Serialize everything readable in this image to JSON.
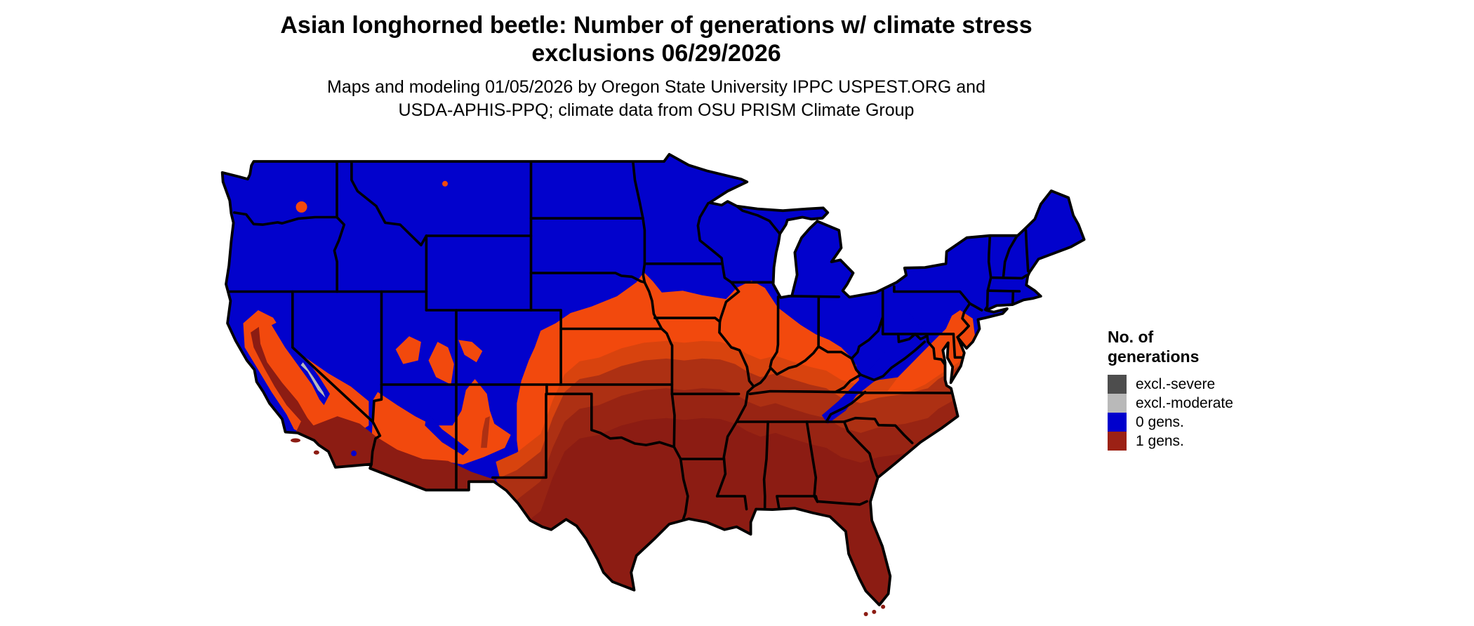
{
  "title": {
    "line1": "Asian longhorned beetle: Number of generations w/ climate stress",
    "line2": "exclusions 06/29/2026"
  },
  "subtitle": {
    "line1": "Maps and modeling 01/05/2026 by Oregon State University IPPC USPEST.ORG and",
    "line2": "USDA-APHIS-PPQ; climate data from OSU PRISM Climate Group"
  },
  "legend": {
    "title_line1": "No. of",
    "title_line2": "generations",
    "items": [
      {
        "label": "excl.-severe",
        "color": "#4d4d4d"
      },
      {
        "label": "excl.-moderate",
        "color": "#b9b9b9"
      },
      {
        "label": "0 gens.",
        "color": "#0000cd"
      },
      {
        "label": "1 gens.",
        "color": "#9c2115"
      }
    ]
  },
  "map": {
    "colors": {
      "background": "#ffffff",
      "border": "#000000",
      "blue_0gens": "#0202cc",
      "orange": "#f2490d",
      "orange_dark": "#d8430e",
      "red_light": "#ad3013",
      "red": "#982413",
      "red_deep": "#8c1c13",
      "excl_moderate_gray": "#b9b9b9"
    }
  }
}
